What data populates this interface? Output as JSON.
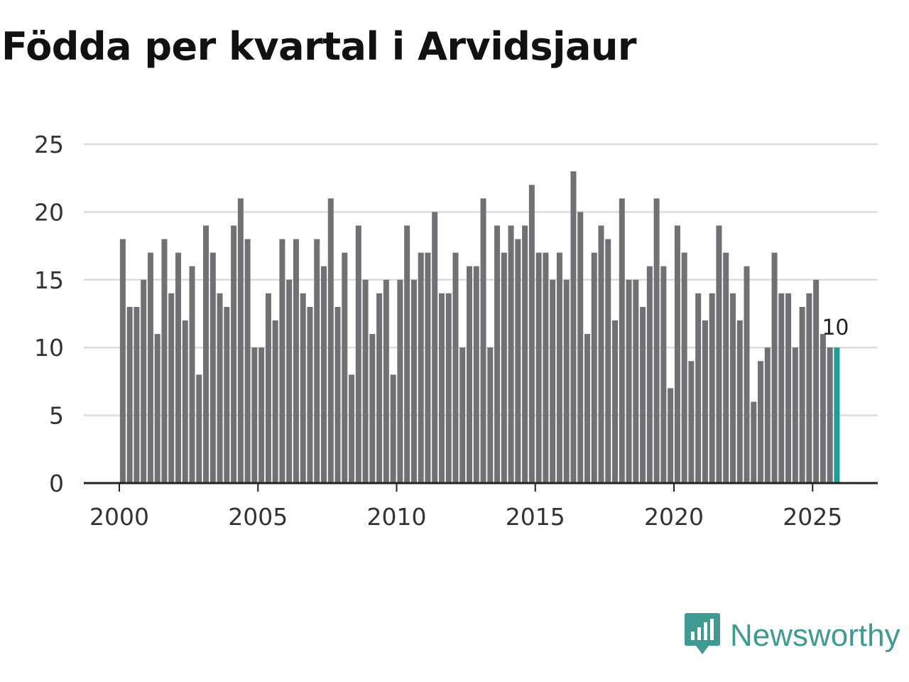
{
  "title": "Födda per kvartal i Arvidsjaur",
  "brand": {
    "name": "Newsworthy",
    "icon": "newsworthy-logo-icon"
  },
  "colors": {
    "bar": "#707075",
    "highlight": "#1a9e96",
    "grid": "#dcdcdc",
    "axis": "#222222",
    "brand": "#3f9a92"
  },
  "chart_data": {
    "type": "bar",
    "title": "Födda per kvartal i Arvidsjaur",
    "xlabel": "",
    "ylabel": "",
    "x_start": 2000,
    "period": "quarter",
    "xlim": [
      1999.75,
      2027.25
    ],
    "ylim": [
      0,
      25
    ],
    "yticks": [
      0,
      5,
      10,
      15,
      20,
      25
    ],
    "xticks": [
      2000,
      2005,
      2010,
      2015,
      2020,
      2025
    ],
    "grid": true,
    "values": [
      18,
      13,
      13,
      15,
      17,
      11,
      18,
      14,
      17,
      12,
      16,
      8,
      19,
      17,
      14,
      13,
      19,
      21,
      18,
      10,
      10,
      14,
      12,
      18,
      15,
      18,
      14,
      13,
      18,
      16,
      21,
      13,
      17,
      8,
      19,
      15,
      11,
      14,
      15,
      8,
      15,
      19,
      15,
      17,
      17,
      20,
      14,
      14,
      17,
      10,
      16,
      16,
      21,
      10,
      19,
      17,
      19,
      18,
      19,
      22,
      17,
      17,
      15,
      17,
      15,
      23,
      20,
      11,
      17,
      19,
      18,
      12,
      21,
      15,
      15,
      13,
      16,
      21,
      16,
      7,
      19,
      17,
      9,
      14,
      12,
      14,
      19,
      17,
      14,
      12,
      16,
      6,
      9,
      10,
      17,
      14,
      14,
      10,
      13,
      14,
      15,
      11,
      10,
      10
    ],
    "highlight_label": "10"
  }
}
